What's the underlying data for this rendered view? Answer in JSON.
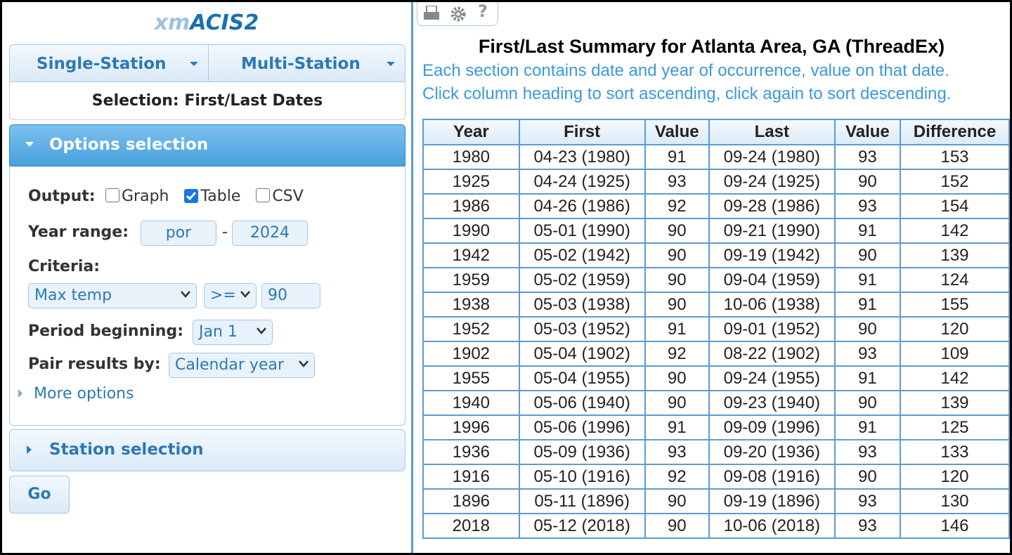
{
  "app": {
    "title_prefix": "xm",
    "title_main": "ACIS2"
  },
  "nav": {
    "tabs": [
      "Single-Station",
      "Multi-Station"
    ],
    "selection": "Selection: First/Last Dates"
  },
  "options": {
    "header": "Options selection",
    "output_label": "Output:",
    "outputs": [
      {
        "label": "Graph",
        "checked": false
      },
      {
        "label": "Table",
        "checked": true
      },
      {
        "label": "CSV",
        "checked": false
      }
    ],
    "year_range_label": "Year range:",
    "year_start": "por",
    "year_sep": "-",
    "year_end": "2024",
    "criteria_label": "Criteria:",
    "criteria_element": "Max temp",
    "criteria_op": ">=",
    "criteria_value": "90",
    "period_label": "Period beginning:",
    "period_value": "Jan 1",
    "pair_label": "Pair results by:",
    "pair_value": "Calendar year",
    "more": "More options"
  },
  "station": {
    "header": "Station selection"
  },
  "go": "Go",
  "toolbar": {
    "help": "?"
  },
  "report": {
    "title": "First/Last Summary for Atlanta Area, GA (ThreadEx)",
    "notes": [
      "Each section contains date and year of occurrence, value on that date.",
      "Click column heading to sort ascending, click again to sort descending."
    ],
    "table": {
      "columns": [
        "Year",
        "First",
        "Value",
        "Last",
        "Value",
        "Difference"
      ],
      "rows": [
        [
          1980,
          "04-23 (1980)",
          91,
          "09-24 (1980)",
          93,
          153
        ],
        [
          1925,
          "04-24 (1925)",
          93,
          "09-24 (1925)",
          90,
          152
        ],
        [
          1986,
          "04-26 (1986)",
          92,
          "09-28 (1986)",
          93,
          154
        ],
        [
          1990,
          "05-01 (1990)",
          90,
          "09-21 (1990)",
          91,
          142
        ],
        [
          1942,
          "05-02 (1942)",
          90,
          "09-19 (1942)",
          90,
          139
        ],
        [
          1959,
          "05-02 (1959)",
          90,
          "09-04 (1959)",
          91,
          124
        ],
        [
          1938,
          "05-03 (1938)",
          90,
          "10-06 (1938)",
          91,
          155
        ],
        [
          1952,
          "05-03 (1952)",
          91,
          "09-01 (1952)",
          90,
          120
        ],
        [
          1902,
          "05-04 (1902)",
          92,
          "08-22 (1902)",
          93,
          109
        ],
        [
          1955,
          "05-04 (1955)",
          90,
          "09-24 (1955)",
          91,
          142
        ],
        [
          1940,
          "05-06 (1940)",
          90,
          "09-23 (1940)",
          90,
          139
        ],
        [
          1996,
          "05-06 (1996)",
          91,
          "09-09 (1996)",
          91,
          125
        ],
        [
          1936,
          "05-09 (1936)",
          93,
          "09-20 (1936)",
          93,
          133
        ],
        [
          1916,
          "05-10 (1916)",
          92,
          "09-08 (1916)",
          90,
          120
        ],
        [
          1896,
          "05-11 (1896)",
          90,
          "09-19 (1896)",
          93,
          130
        ],
        [
          2018,
          "05-12 (2018)",
          90,
          "10-06 (2018)",
          93,
          146
        ]
      ]
    }
  }
}
